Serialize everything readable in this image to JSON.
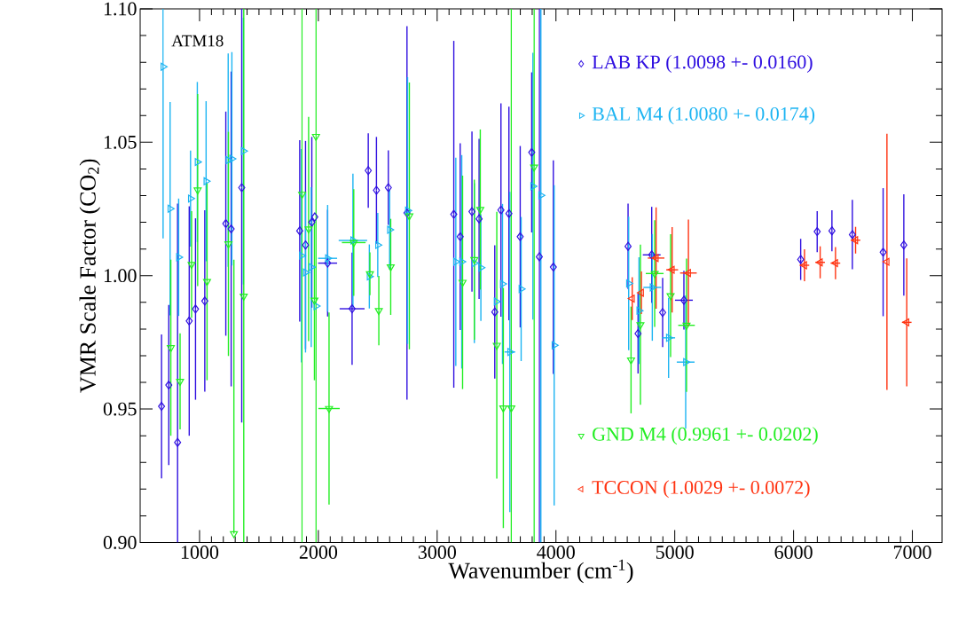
{
  "chart_data": {
    "type": "scatter",
    "xlabel": "Wavenumber (cm$^{-1}$)",
    "ylabel": "VMR Scale Factor (CO$_{2}$)",
    "annotations": [
      "ATM18"
    ],
    "xlim": [
      500,
      7250
    ],
    "ylim": [
      0.9,
      1.1
    ],
    "xticks": [
      1000,
      2000,
      3000,
      4000,
      5000,
      6000,
      7000
    ],
    "yticks": [
      {
        "value": 0.9,
        "label": "0.90"
      },
      {
        "value": 0.95,
        "label": "0.95"
      },
      {
        "value": 1.0,
        "label": "1.00"
      },
      {
        "value": 1.05,
        "label": "1.05"
      },
      {
        "value": 1.1,
        "label": "1.10"
      }
    ],
    "legend": "right",
    "series": [
      {
        "name": "LAB KP (1.0098 +- 0.0160)",
        "color": "#3010e0",
        "marker": "diamond",
        "x": [
          680,
          741,
          815,
          913,
          966,
          1044,
          1221,
          1266,
          1355,
          1843,
          1892,
          1945,
          1970,
          2078,
          2284,
          2420,
          2489,
          2589,
          2746,
          3140,
          3194,
          3293,
          3353,
          3485,
          3537,
          3604,
          3699,
          3796,
          3860,
          3978,
          4607,
          4691,
          4806,
          4898,
          5077,
          6060,
          6199,
          6323,
          6495,
          6754,
          6928
        ],
        "values": [
          0.951,
          0.959,
          0.9375,
          0.983,
          0.9875,
          0.9905,
          1.0195,
          1.0175,
          1.033,
          1.0168,
          1.0115,
          1.02,
          1.022,
          1.0047,
          0.9876,
          1.0394,
          1.032,
          1.033,
          1.0235,
          1.023,
          1.0146,
          1.024,
          1.0213,
          0.9864,
          1.0246,
          1.0233,
          1.0146,
          1.0462,
          1.0071,
          1.0032,
          1.011,
          0.9783,
          1.0078,
          0.9862,
          0.9908,
          1.0061,
          1.0165,
          1.0168,
          1.0154,
          1.0088,
          1.0115
        ],
        "errors": [
          0.027,
          0.03,
          [
            0.9,
            1.027
          ],
          0.043,
          0.034,
          0.034,
          0.042,
          0.059,
          [
            0.945,
            1.1
          ],
          0.034,
          0.039,
          0.032,
          null,
          0.02,
          0.021,
          0.014,
          0.02,
          0.014,
          0.07,
          0.065,
          0.035,
          0.03,
          0.03,
          0.025,
          0.04,
          0.04,
          0.034,
          0.03,
          [
            0.9,
            1.1
          ],
          0.04,
          0.016,
          0.015,
          0.018,
          0.013,
          0.011,
          0.0077,
          0.0077,
          0.0077,
          0.013,
          0.024,
          0.019
        ],
        "xerrors": [
          null,
          null,
          null,
          null,
          null,
          null,
          null,
          null,
          null,
          null,
          null,
          null,
          null,
          80,
          105,
          null,
          null,
          null,
          null,
          null,
          null,
          null,
          null,
          null,
          null,
          null,
          null,
          null,
          null,
          null,
          null,
          null,
          75,
          null,
          75,
          null,
          null,
          null,
          null,
          null,
          null
        ]
      },
      {
        "name": "BAL M4 (1.0080 +- 0.0174)",
        "color": "#1cb4f2",
        "marker": "triangle",
        "x": [
          693,
          752,
          824,
          924,
          981,
          1055,
          1241,
          1272,
          1369,
          1858,
          1892,
          1940,
          1981,
          2078,
          2291,
          2429,
          2500,
          2600,
          2751,
          3157,
          3207,
          3313,
          3368,
          3498,
          3550,
          3612,
          3707,
          3806,
          3873,
          3985,
          4612,
          4699,
          4811,
          4948,
          5092
        ],
        "values": [
          1.0783,
          1.0251,
          1.0069,
          1.0289,
          1.0426,
          1.0354,
          1.0433,
          1.0438,
          1.0467,
          1.0075,
          1.0012,
          1.0032,
          0.9886,
          1.0065,
          1.0132,
          0.9997,
          1.0115,
          1.0172,
          1.0244,
          1.0052,
          1.0052,
          1.0047,
          1.003,
          0.9903,
          0.9969,
          0.9714,
          0.995,
          1.0335,
          1.0301,
          0.9739,
          0.9971,
          0.9869,
          0.9956,
          0.9767,
          0.9676
        ],
        "errors": [
          [
            1.014,
            1.1
          ],
          0.04,
          0.022,
          0.018,
          0.03,
          0.03,
          0.04,
          0.04,
          0.05,
          0.04,
          0.03,
          0.03,
          null,
          0.02,
          0.025,
          0.012,
          0.012,
          0.015,
          0.05,
          0.039,
          0.04,
          0.03,
          0.02,
          null,
          0.03,
          0.06,
          0.027,
          0.05,
          [
            0.9,
            1.1
          ],
          0.06,
          0.025,
          0.02,
          0.02,
          0.015,
          0.025
        ],
        "xerrors": [
          null,
          null,
          null,
          null,
          null,
          null,
          null,
          null,
          null,
          null,
          null,
          null,
          null,
          80,
          120,
          null,
          null,
          null,
          null,
          null,
          null,
          null,
          null,
          null,
          null,
          45,
          null,
          null,
          null,
          null,
          null,
          null,
          75,
          55,
          75
        ]
      },
      {
        "name": "GND M4 (0.9961 +- 0.0202)",
        "color": "#22ee22",
        "marker": "triangle",
        "x": [
          758,
          836,
          933,
          984,
          1063,
          1243,
          1289,
          1372,
          1863,
          1918,
          1967,
          1980,
          2090,
          2298,
          2434,
          2509,
          2609,
          2766,
          3214,
          3313,
          3363,
          3502,
          3557,
          3624,
          3816,
          4632,
          4711,
          4831,
          4965,
          5099
        ],
        "values": [
          0.973,
          0.9604,
          1.0042,
          1.0321,
          0.9978,
          1.0119,
          0.9033,
          0.9923,
          1.0305,
          1.0175,
          0.9908,
          1.0522,
          0.9502,
          1.0124,
          1.0007,
          0.9869,
          1.0033,
          1.0224,
          0.9975,
          1.006,
          1.0248,
          0.9739,
          0.9504,
          0.9504,
          1.0407,
          0.9684,
          0.9816,
          1.0008,
          0.9925,
          0.9814
        ],
        "errors": [
          0.033,
          0.018,
          0.02,
          0.036,
          0.037,
          0.042,
          [
            0.9033,
            1.006
          ],
          [
            0.9,
            1.1
          ],
          [
            0.9,
            1.1
          ],
          0.042,
          0.03,
          [
            0.9,
            1.1
          ],
          0.036,
          0.02,
          0.008,
          0.013,
          0.018,
          0.05,
          0.04,
          0.03,
          0.03,
          0.05,
          0.045,
          [
            0.9,
            1.1
          ],
          [
            0.9,
            1.1
          ],
          0.02,
          0.03,
          0.02,
          0.023,
          0.025
        ],
        "xerrors": [
          null,
          null,
          null,
          null,
          null,
          null,
          null,
          null,
          null,
          null,
          null,
          null,
          90,
          100,
          null,
          null,
          null,
          null,
          null,
          null,
          null,
          null,
          null,
          null,
          null,
          null,
          null,
          75,
          null,
          70
        ]
      },
      {
        "name": "TCCON (1.0029 +- 0.0072)",
        "color": "#ff3311",
        "marker": "triangle",
        "x": [
          4642,
          4719,
          4843,
          4978,
          5115,
          6092,
          6224,
          6353,
          6522,
          6786,
          6953
        ],
        "values": [
          0.9914,
          0.9936,
          1.0066,
          1.0022,
          1.001,
          1.0039,
          1.005,
          1.0047,
          1.0133,
          1.0052,
          0.9825
        ],
        "errors": [
          0.008,
          0.008,
          0.019,
          0.016,
          0.02,
          0.006,
          0.006,
          0.006,
          0.005,
          0.048,
          0.024
        ],
        "xerrors": [
          null,
          null,
          70,
          50,
          70,
          40,
          40,
          40,
          40,
          null,
          40
        ]
      }
    ]
  }
}
